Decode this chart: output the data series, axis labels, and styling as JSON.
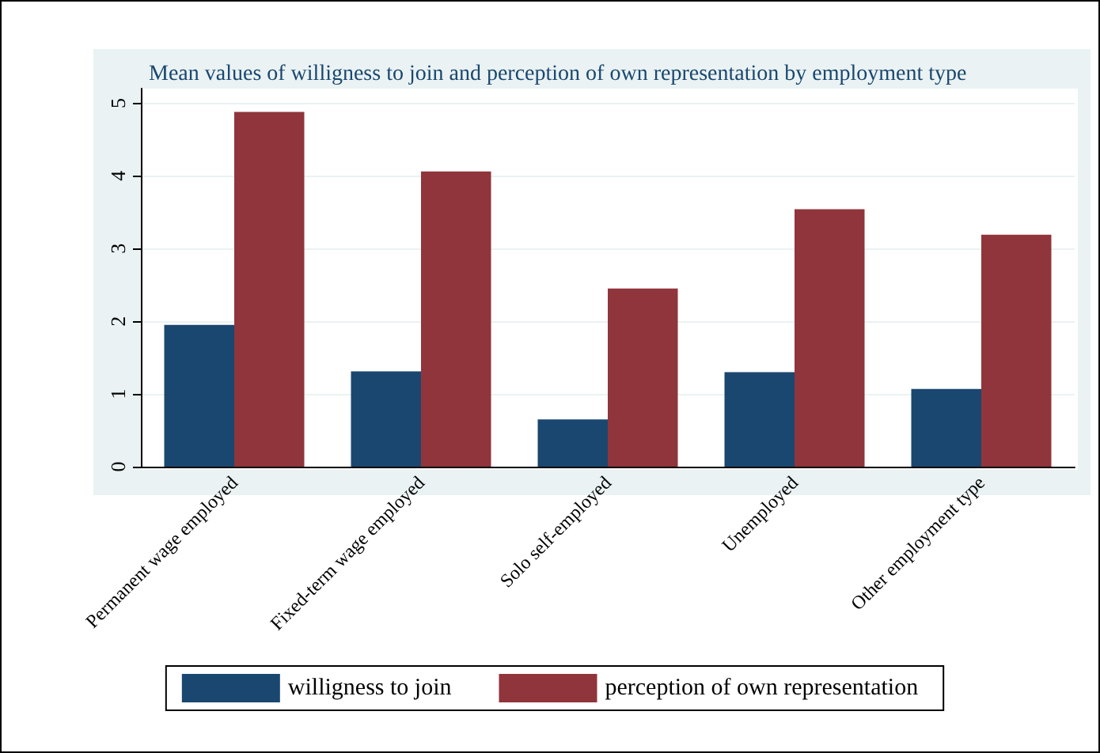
{
  "chart_data": {
    "type": "bar",
    "title": "Mean values of willigness to join and perception of own representation by employment type",
    "categories": [
      "Permanent wage employed",
      "Fixed-term wage employed",
      "Solo self-employed",
      "Unemployed",
      "Other employment type"
    ],
    "series": [
      {
        "name": "willigness to join",
        "color": "#1a476f",
        "values": [
          1.95,
          1.31,
          0.65,
          1.3,
          1.07
        ]
      },
      {
        "name": "perception of own representation",
        "color": "#90353b",
        "values": [
          4.88,
          4.06,
          2.45,
          3.54,
          3.19
        ]
      }
    ],
    "ylim": [
      0,
      5.2
    ],
    "yticks": [
      0,
      1,
      2,
      3,
      4,
      5
    ],
    "grid": "y",
    "legend": "bottom"
  }
}
